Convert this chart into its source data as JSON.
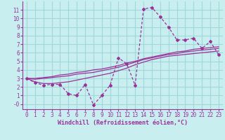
{
  "xlabel": "Windchill (Refroidissement éolien,°C)",
  "bg_color": "#c8eef0",
  "grid_color": "#a0d8d8",
  "line_color": "#993399",
  "axis_color": "#993399",
  "x_data": [
    0,
    1,
    2,
    3,
    4,
    5,
    6,
    7,
    8,
    9,
    10,
    11,
    12,
    13,
    14,
    15,
    16,
    17,
    18,
    19,
    20,
    21,
    22,
    23
  ],
  "y_main": [
    3.0,
    2.5,
    2.2,
    2.3,
    2.3,
    1.2,
    1.0,
    2.3,
    -0.1,
    1.0,
    2.2,
    5.4,
    4.7,
    2.2,
    11.1,
    11.3,
    10.2,
    9.0,
    7.5,
    7.5,
    7.7,
    6.5,
    7.3,
    5.8
  ],
  "y_smooth1": [
    3.0,
    3.0,
    3.1,
    3.2,
    3.4,
    3.5,
    3.7,
    3.8,
    4.0,
    4.1,
    4.3,
    4.5,
    4.8,
    5.0,
    5.3,
    5.5,
    5.7,
    5.9,
    6.1,
    6.2,
    6.4,
    6.5,
    6.6,
    6.7
  ],
  "y_smooth2": [
    3.0,
    2.9,
    3.0,
    3.1,
    3.2,
    3.3,
    3.5,
    3.6,
    3.7,
    3.9,
    4.1,
    4.3,
    4.6,
    4.9,
    5.2,
    5.4,
    5.6,
    5.8,
    5.9,
    6.1,
    6.2,
    6.3,
    6.4,
    6.5
  ],
  "y_smooth3": [
    3.0,
    2.6,
    2.4,
    2.4,
    2.5,
    2.6,
    2.8,
    3.0,
    3.2,
    3.4,
    3.6,
    3.9,
    4.2,
    4.6,
    4.9,
    5.2,
    5.4,
    5.6,
    5.7,
    5.8,
    5.9,
    6.0,
    6.1,
    6.2
  ],
  "ylim": [
    -0.6,
    12.0
  ],
  "xlim": [
    -0.5,
    23.5
  ],
  "yticks": [
    0,
    1,
    2,
    3,
    4,
    5,
    6,
    7,
    8,
    9,
    10,
    11
  ],
  "xticks": [
    0,
    1,
    2,
    3,
    4,
    5,
    6,
    7,
    8,
    9,
    10,
    11,
    12,
    13,
    14,
    15,
    16,
    17,
    18,
    19,
    20,
    21,
    22,
    23
  ]
}
